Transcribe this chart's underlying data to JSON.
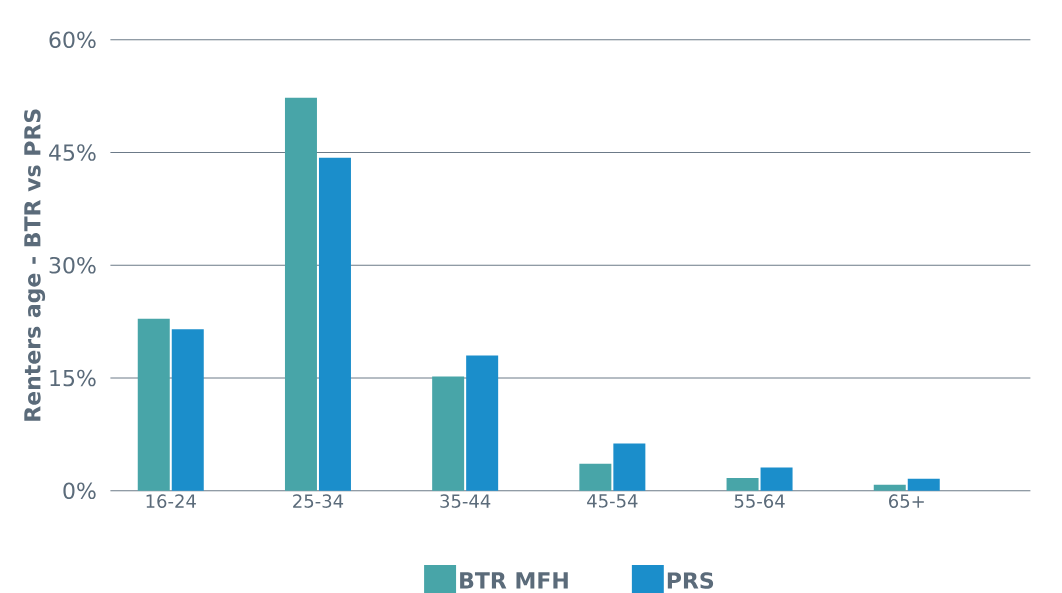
{
  "chart_data": {
    "type": "bar",
    "ylabel": "Renters age - BTR vs PRS",
    "categories": [
      "16-24",
      "25-34",
      "35-44",
      "45-54",
      "55-64",
      "65+"
    ],
    "series": [
      {
        "name": "BTR MFH",
        "color": "#48a5a8",
        "values": [
          22.9,
          52.3,
          15.2,
          3.6,
          1.7,
          0.8
        ]
      },
      {
        "name": "PRS",
        "color": "#1b8ecb",
        "values": [
          21.5,
          44.3,
          18.0,
          6.3,
          3.1,
          1.6
        ]
      }
    ],
    "ylim": [
      0,
      60
    ],
    "yticks": [
      {
        "value": 0,
        "label": "0%"
      },
      {
        "value": 15,
        "label": "15%"
      },
      {
        "value": 30,
        "label": "30%"
      },
      {
        "value": 45,
        "label": "45%"
      },
      {
        "value": 60,
        "label": "60%"
      }
    ],
    "grid": "y",
    "legend": "bottom"
  }
}
